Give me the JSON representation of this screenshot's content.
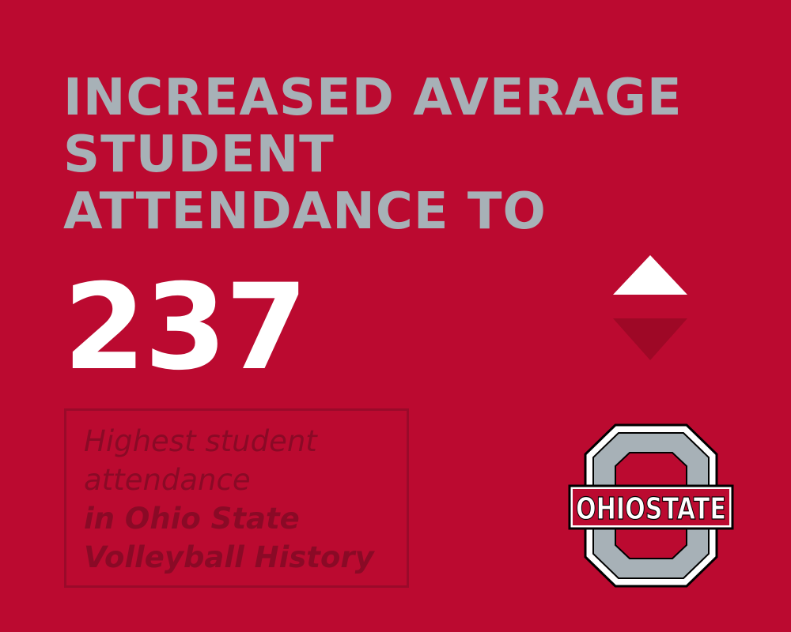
{
  "headline": {
    "line1": "INCREASED AVERAGE",
    "line2": "STUDENT",
    "line3": "ATTENDANCE TO"
  },
  "stat": {
    "value": "237",
    "trend": "up"
  },
  "note": {
    "line1": "Highest student",
    "line2": "attendance",
    "line3": "in Ohio State",
    "line4": "Volleyball History"
  },
  "logo": {
    "text": "OHIOSTATE"
  },
  "colors": {
    "background": "#bb0a30",
    "headline": "#a7b1b7",
    "number": "#ffffff",
    "arrow_up": "#ffffff",
    "arrow_down": "#9e0826",
    "note_text": "#8a0a26"
  }
}
